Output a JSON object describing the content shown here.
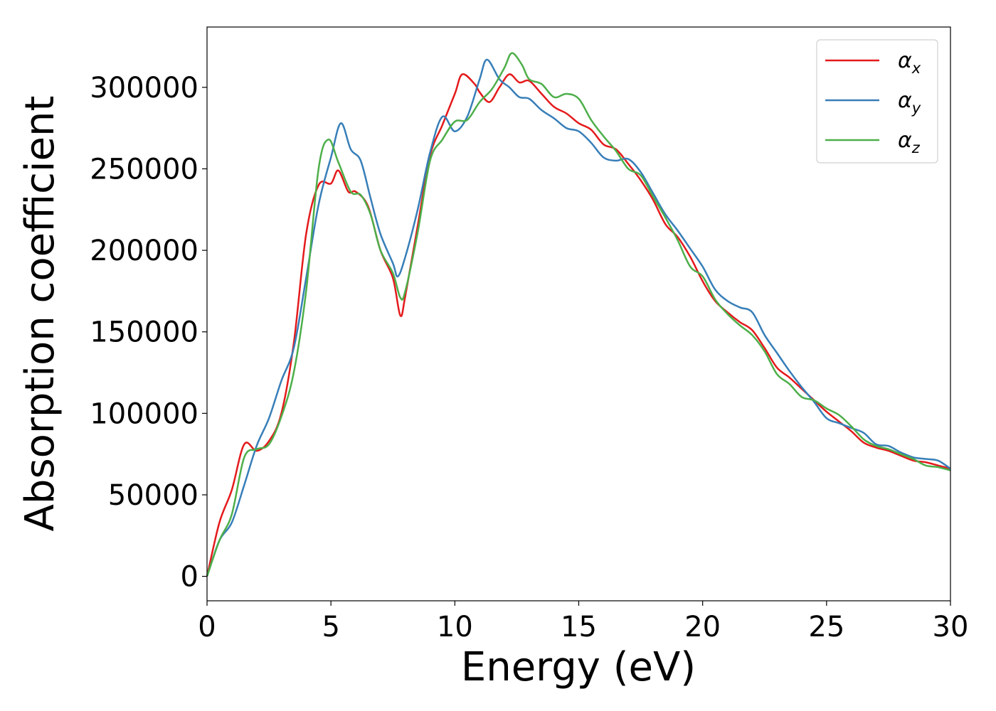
{
  "chart_data": {
    "type": "line",
    "xlabel": "Energy (eV)",
    "ylabel": "Absorption coefficient",
    "xlim": [
      0,
      30
    ],
    "ylim": [
      -15000,
      337000
    ],
    "x_ticks": [
      "0",
      "5",
      "10",
      "15",
      "20",
      "25",
      "30"
    ],
    "y_ticks": [
      "0",
      "50000",
      "100000",
      "150000",
      "200000",
      "250000",
      "300000"
    ],
    "grid": false,
    "legend_position": "top-right",
    "series": [
      {
        "name": "αx",
        "symbol": "α",
        "subscript": "x",
        "color": "#e41a1c",
        "points": [
          [
            0,
            0
          ],
          [
            0.5,
            33000
          ],
          [
            1,
            53000
          ],
          [
            1.5,
            81000
          ],
          [
            2,
            77000
          ],
          [
            2.5,
            83000
          ],
          [
            3,
            100000
          ],
          [
            3.5,
            143000
          ],
          [
            4,
            210000
          ],
          [
            4.5,
            240000
          ],
          [
            5,
            241000
          ],
          [
            5.3,
            249000
          ],
          [
            5.7,
            236000
          ],
          [
            6,
            236000
          ],
          [
            6.5,
            227000
          ],
          [
            7,
            200000
          ],
          [
            7.5,
            183000
          ],
          [
            7.8,
            160000
          ],
          [
            8,
            172000
          ],
          [
            8.5,
            215000
          ],
          [
            9,
            258000
          ],
          [
            9.5,
            277000
          ],
          [
            10,
            296000
          ],
          [
            10.3,
            308000
          ],
          [
            10.8,
            302000
          ],
          [
            11,
            297000
          ],
          [
            11.4,
            291000
          ],
          [
            11.8,
            300000
          ],
          [
            12.2,
            308000
          ],
          [
            12.6,
            303000
          ],
          [
            13,
            304000
          ],
          [
            13.5,
            296000
          ],
          [
            14,
            288000
          ],
          [
            14.5,
            284000
          ],
          [
            15,
            278000
          ],
          [
            15.5,
            274000
          ],
          [
            16,
            265000
          ],
          [
            16.5,
            262000
          ],
          [
            17,
            253000
          ],
          [
            17.5,
            243000
          ],
          [
            18,
            231000
          ],
          [
            18.5,
            216000
          ],
          [
            19,
            208000
          ],
          [
            19.5,
            196000
          ],
          [
            20,
            181000
          ],
          [
            20.5,
            169000
          ],
          [
            21,
            162000
          ],
          [
            21.5,
            156000
          ],
          [
            22,
            151000
          ],
          [
            22.5,
            140000
          ],
          [
            23,
            128000
          ],
          [
            23.5,
            122000
          ],
          [
            24,
            115000
          ],
          [
            24.5,
            108000
          ],
          [
            25,
            101000
          ],
          [
            25.5,
            95000
          ],
          [
            26,
            89000
          ],
          [
            26.5,
            82000
          ],
          [
            27,
            79000
          ],
          [
            27.5,
            77000
          ],
          [
            28,
            74000
          ],
          [
            28.5,
            71000
          ],
          [
            29,
            70000
          ],
          [
            29.5,
            68000
          ],
          [
            30,
            66000
          ]
        ]
      },
      {
        "name": "αy",
        "symbol": "α",
        "subscript": "y",
        "color": "#377eb8",
        "points": [
          [
            0,
            0
          ],
          [
            0.5,
            22000
          ],
          [
            1,
            33000
          ],
          [
            1.5,
            56000
          ],
          [
            2,
            80000
          ],
          [
            2.5,
            97000
          ],
          [
            3,
            120000
          ],
          [
            3.5,
            140000
          ],
          [
            4,
            183000
          ],
          [
            4.5,
            228000
          ],
          [
            5,
            257000
          ],
          [
            5.4,
            278000
          ],
          [
            5.8,
            262000
          ],
          [
            6.2,
            255000
          ],
          [
            6.6,
            232000
          ],
          [
            7,
            210000
          ],
          [
            7.5,
            192000
          ],
          [
            7.7,
            184000
          ],
          [
            8,
            196000
          ],
          [
            8.5,
            225000
          ],
          [
            9,
            260000
          ],
          [
            9.5,
            282000
          ],
          [
            10,
            273000
          ],
          [
            10.5,
            282000
          ],
          [
            11,
            305000
          ],
          [
            11.3,
            317000
          ],
          [
            11.8,
            305000
          ],
          [
            12.2,
            300000
          ],
          [
            12.6,
            294000
          ],
          [
            13,
            293000
          ],
          [
            13.5,
            286000
          ],
          [
            14,
            281000
          ],
          [
            14.5,
            275000
          ],
          [
            15,
            273000
          ],
          [
            15.5,
            266000
          ],
          [
            16,
            257000
          ],
          [
            16.5,
            255000
          ],
          [
            17,
            256000
          ],
          [
            17.5,
            248000
          ],
          [
            18,
            235000
          ],
          [
            18.5,
            222000
          ],
          [
            19,
            212000
          ],
          [
            19.5,
            201000
          ],
          [
            20,
            190000
          ],
          [
            20.5,
            176000
          ],
          [
            21,
            169000
          ],
          [
            21.5,
            165000
          ],
          [
            22,
            162000
          ],
          [
            22.5,
            148000
          ],
          [
            23,
            137000
          ],
          [
            23.5,
            126000
          ],
          [
            24,
            116000
          ],
          [
            24.5,
            107000
          ],
          [
            25,
            97000
          ],
          [
            25.5,
            94000
          ],
          [
            26,
            91000
          ],
          [
            26.5,
            88000
          ],
          [
            27,
            81000
          ],
          [
            27.5,
            80000
          ],
          [
            28,
            76000
          ],
          [
            28.5,
            73000
          ],
          [
            29,
            72000
          ],
          [
            29.5,
            71000
          ],
          [
            30,
            66000
          ]
        ]
      },
      {
        "name": "αz",
        "symbol": "α",
        "subscript": "z",
        "color": "#4daf4a",
        "points": [
          [
            0,
            0
          ],
          [
            0.5,
            22000
          ],
          [
            1,
            38000
          ],
          [
            1.5,
            73000
          ],
          [
            2,
            78000
          ],
          [
            2.5,
            81000
          ],
          [
            3,
            98000
          ],
          [
            3.5,
            125000
          ],
          [
            4,
            175000
          ],
          [
            4.5,
            250000
          ],
          [
            4.9,
            268000
          ],
          [
            5.3,
            254000
          ],
          [
            5.8,
            236000
          ],
          [
            6.2,
            234000
          ],
          [
            6.6,
            222000
          ],
          [
            7,
            200000
          ],
          [
            7.5,
            186000
          ],
          [
            7.8,
            171000
          ],
          [
            8,
            175000
          ],
          [
            8.5,
            211000
          ],
          [
            9,
            255000
          ],
          [
            9.5,
            268000
          ],
          [
            10,
            279000
          ],
          [
            10.5,
            280000
          ],
          [
            11,
            291000
          ],
          [
            11.5,
            299000
          ],
          [
            12,
            312000
          ],
          [
            12.3,
            321000
          ],
          [
            12.7,
            314000
          ],
          [
            13,
            305000
          ],
          [
            13.5,
            302000
          ],
          [
            14,
            294000
          ],
          [
            14.5,
            296000
          ],
          [
            15,
            293000
          ],
          [
            15.5,
            280000
          ],
          [
            16,
            270000
          ],
          [
            16.5,
            261000
          ],
          [
            17,
            250000
          ],
          [
            17.5,
            246000
          ],
          [
            18,
            233000
          ],
          [
            18.5,
            220000
          ],
          [
            19,
            206000
          ],
          [
            19.5,
            190000
          ],
          [
            20,
            184000
          ],
          [
            20.5,
            170000
          ],
          [
            21,
            161000
          ],
          [
            21.5,
            154000
          ],
          [
            22,
            148000
          ],
          [
            22.5,
            138000
          ],
          [
            23,
            124000
          ],
          [
            23.5,
            118000
          ],
          [
            24,
            110000
          ],
          [
            24.5,
            108000
          ],
          [
            25,
            103000
          ],
          [
            25.5,
            99000
          ],
          [
            26,
            92000
          ],
          [
            26.5,
            84000
          ],
          [
            27,
            80000
          ],
          [
            27.5,
            78000
          ],
          [
            28,
            75000
          ],
          [
            28.5,
            72000
          ],
          [
            29,
            68000
          ],
          [
            29.5,
            67000
          ],
          [
            30,
            65000
          ]
        ]
      }
    ]
  }
}
